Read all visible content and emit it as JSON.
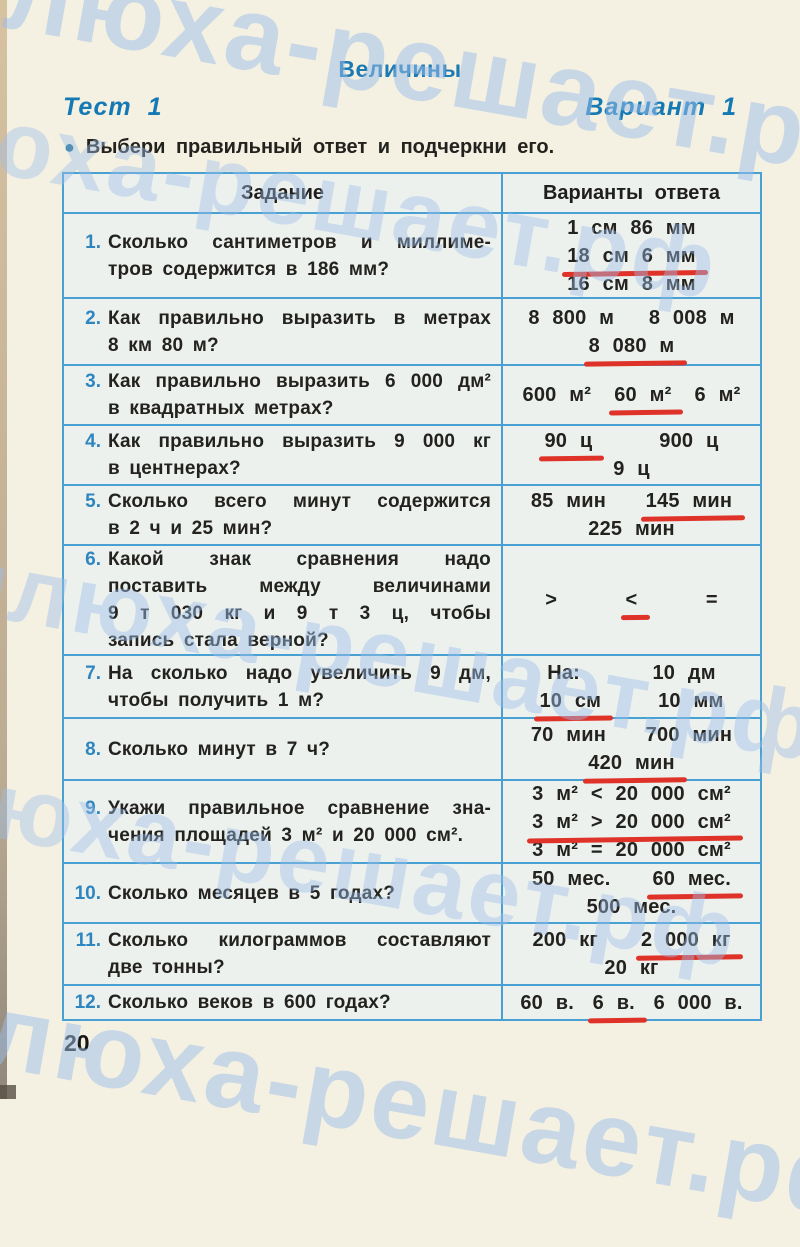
{
  "watermark": {
    "text": "илюха-решает.рф",
    "color": "#9dbfea"
  },
  "page": {
    "subject_title": "Величины",
    "test_label": "Тест 1",
    "variant_label": "Вариант 1",
    "bullet_icon": "●",
    "instruction": "Выбери правильный ответ и подчеркни его.",
    "page_number": "20"
  },
  "colors": {
    "table_border": "#48a0d3",
    "heading_blue": "#1d7ab3",
    "question_number_blue": "#2e86c0",
    "underline_red": "#df332a",
    "text_black": "#23221f"
  },
  "table": {
    "header": {
      "task": "Задание",
      "answers": "Варианты ответа"
    },
    "rows": [
      {
        "num": "1.",
        "question_lines": [
          "Сколько сантиметров и миллиме-",
          "тров содержится в 186 мм?"
        ],
        "answer_lines": [
          [
            {
              "text": "1 см 86 мм",
              "underlined": false
            }
          ],
          [
            {
              "text": "18 см 6 мм",
              "underlined": true
            }
          ],
          [
            {
              "text": "16 см 8 мм",
              "underlined": false
            }
          ]
        ]
      },
      {
        "num": "2.",
        "question_lines": [
          "Как правильно выразить в метрах",
          "8 км 80 м?"
        ],
        "answer_lines": [
          [
            {
              "text": "8 800 м",
              "underlined": false
            },
            {
              "text": "8 008 м",
              "underlined": false
            }
          ],
          [
            {
              "text": "8 080 м",
              "underlined": true
            }
          ]
        ]
      },
      {
        "num": "3.",
        "question_lines": [
          "Как правильно выразить 6 000 дм²",
          "в квадратных метрах?"
        ],
        "answer_lines": [
          [
            {
              "text": "600 м²",
              "underlined": false
            },
            {
              "text": "60 м²",
              "underlined": true
            },
            {
              "text": "6 м²",
              "underlined": false
            }
          ]
        ]
      },
      {
        "num": "4.",
        "question_lines": [
          "Как правильно выразить 9 000 кг",
          "в центнерах?"
        ],
        "answer_lines": [
          [
            {
              "text": "90 ц",
              "underlined": true
            },
            {
              "text": "900 ц",
              "underlined": false
            }
          ],
          [
            {
              "text": "9 ц",
              "underlined": false
            }
          ]
        ]
      },
      {
        "num": "5.",
        "question_lines": [
          "Сколько всего минут содержится",
          "в 2 ч и 25 мин?"
        ],
        "answer_lines": [
          [
            {
              "text": "85 мин",
              "underlined": false
            },
            {
              "text": "145 мин",
              "underlined": true
            }
          ],
          [
            {
              "text": "225 мин",
              "underlined": false
            }
          ]
        ]
      },
      {
        "num": "6.",
        "question_lines": [
          "Какой знак сравнения надо",
          "поставить между величинами",
          "9 т 030 кг и 9 т 3 ц, чтобы",
          "запись стала верной?"
        ],
        "answer_lines": [
          [
            {
              "text": ">",
              "underlined": false
            },
            {
              "text": "<",
              "underlined": true
            },
            {
              "text": "=",
              "underlined": false
            }
          ]
        ]
      },
      {
        "num": "7.",
        "question_lines": [
          "На сколько надо увеличить 9 дм,",
          "чтобы получить 1 м?"
        ],
        "answer_lines": [
          [
            {
              "text": "На:",
              "underlined": false
            },
            {
              "text": "10 дм",
              "underlined": false
            }
          ],
          [
            {
              "text": "10 см",
              "underlined": true
            },
            {
              "text": "10 мм",
              "underlined": false
            }
          ]
        ]
      },
      {
        "num": "8.",
        "question_lines": [
          "Сколько минут в 7 ч?"
        ],
        "answer_lines": [
          [
            {
              "text": "70 мин",
              "underlined": false
            },
            {
              "text": "700 мин",
              "underlined": false
            }
          ],
          [
            {
              "text": "420 мин",
              "underlined": true
            }
          ]
        ]
      },
      {
        "num": "9.",
        "question_lines": [
          "Укажи правильное сравнение зна-",
          "чения площадей 3 м² и 20 000 см²."
        ],
        "answer_lines": [
          [
            {
              "text": "3 м² < 20 000 см²",
              "underlined": false
            }
          ],
          [
            {
              "text": "3 м² > 20 000 см²",
              "underlined": true
            }
          ],
          [
            {
              "text": "3 м² = 20 000 см²",
              "underlined": false
            }
          ]
        ]
      },
      {
        "num": "10.",
        "question_lines": [
          "Сколько месяцев в 5 годах?"
        ],
        "answer_lines": [
          [
            {
              "text": "50 мес.",
              "underlined": false
            },
            {
              "text": "60 мес.",
              "underlined": true
            }
          ],
          [
            {
              "text": "500 мес.",
              "underlined": false
            }
          ]
        ]
      },
      {
        "num": "11.",
        "question_lines": [
          "Сколько килограммов составляют",
          "две тонны?"
        ],
        "answer_lines": [
          [
            {
              "text": "200 кг",
              "underlined": false
            },
            {
              "text": "2 000 кг",
              "underlined": true
            }
          ],
          [
            {
              "text": "20 кг",
              "underlined": false
            }
          ]
        ]
      },
      {
        "num": "12.",
        "question_lines": [
          "Сколько веков в 600 годах?"
        ],
        "answer_lines": [
          [
            {
              "text": "60 в.",
              "underlined": false
            },
            {
              "text": "6 в.",
              "underlined": true
            },
            {
              "text": "6 000 в.",
              "underlined": false
            }
          ]
        ]
      }
    ]
  }
}
